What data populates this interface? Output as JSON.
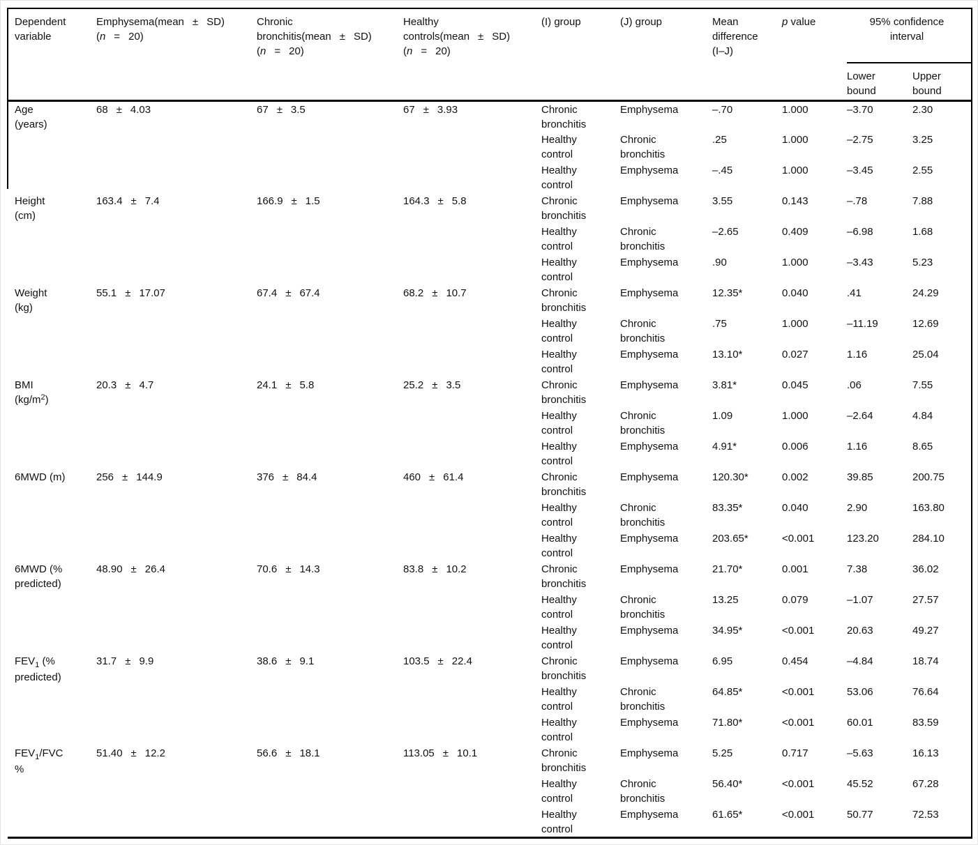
{
  "pm_symbol": "±",
  "header": {
    "dependent_variable": "Dependent\nvariable",
    "emphysema": [
      {
        "t": "Emphysema(mean"
      },
      {
        "t": "±",
        "cls": "gap"
      },
      {
        "t": "SD)"
      },
      {
        "br": true
      },
      {
        "t": "("
      },
      {
        "t": "n",
        "cls": "i"
      },
      {
        "t": "=",
        "cls": "gap"
      },
      {
        "t": "20)"
      }
    ],
    "chronic": [
      {
        "t": "Chronic"
      },
      {
        "br": true
      },
      {
        "t": "bronchitis(mean"
      },
      {
        "t": "±",
        "cls": "gap"
      },
      {
        "t": "SD)"
      },
      {
        "br": true
      },
      {
        "t": "("
      },
      {
        "t": "n",
        "cls": "i"
      },
      {
        "t": "=",
        "cls": "gap"
      },
      {
        "t": "20)"
      }
    ],
    "healthy": [
      {
        "t": "Healthy"
      },
      {
        "br": true
      },
      {
        "t": "controls(mean"
      },
      {
        "t": "±",
        "cls": "gap"
      },
      {
        "t": "SD)"
      },
      {
        "br": true
      },
      {
        "t": "("
      },
      {
        "t": "n",
        "cls": "i"
      },
      {
        "t": "=",
        "cls": "gap"
      },
      {
        "t": "20)"
      }
    ],
    "i_group": "(I) group",
    "j_group": "(J) group",
    "mean_difference": "Mean\ndifference\n(I–J)",
    "p_value": [
      {
        "t": "p",
        "cls": "i"
      },
      {
        "t": " value"
      }
    ],
    "ci": "95% confidence\ninterval",
    "lower": "Lower\nbound",
    "upper": "Upper\nbound"
  },
  "rows": [
    {
      "variable": [
        {
          "t": "Age"
        },
        {
          "br": true
        },
        {
          "t": "(years)"
        }
      ],
      "emphysema": {
        "mean": "68",
        "sd": "4.03"
      },
      "chronic": {
        "mean": "67",
        "sd": "3.5"
      },
      "healthy": {
        "mean": "67",
        "sd": "3.93"
      },
      "comparisons": [
        {
          "i": "Chronic\nbronchitis",
          "j": "Emphysema",
          "md": "–.70",
          "p": "1.000",
          "lower": "–3.70",
          "upper": "2.30"
        },
        {
          "i": "Healthy\ncontrol",
          "j": "Chronic\nbronchitis",
          "md": ".25",
          "p": "1.000",
          "lower": "–2.75",
          "upper": "3.25"
        },
        {
          "i": "Healthy\ncontrol",
          "j": "Emphysema",
          "md": "–.45",
          "p": "1.000",
          "lower": "–3.45",
          "upper": "2.55"
        }
      ]
    },
    {
      "variable": [
        {
          "t": "Height"
        },
        {
          "br": true
        },
        {
          "t": "(cm)"
        }
      ],
      "emphysema": {
        "mean": "163.4",
        "sd": "7.4"
      },
      "chronic": {
        "mean": "166.9",
        "sd": "1.5"
      },
      "healthy": {
        "mean": "164.3",
        "sd": "5.8"
      },
      "comparisons": [
        {
          "i": "Chronic\nbronchitis",
          "j": "Emphysema",
          "md": "3.55",
          "p": "0.143",
          "lower": "–.78",
          "upper": "7.88"
        },
        {
          "i": "Healthy\ncontrol",
          "j": "Chronic\nbronchitis",
          "md": "–2.65",
          "p": "0.409",
          "lower": "–6.98",
          "upper": "1.68"
        },
        {
          "i": "Healthy\ncontrol",
          "j": "Emphysema",
          "md": ".90",
          "p": "1.000",
          "lower": "–3.43",
          "upper": "5.23"
        }
      ]
    },
    {
      "variable": [
        {
          "t": "Weight"
        },
        {
          "br": true
        },
        {
          "t": "(kg)"
        }
      ],
      "emphysema": {
        "mean": "55.1",
        "sd": "17.07"
      },
      "chronic": {
        "mean": "67.4",
        "sd": "67.4"
      },
      "healthy": {
        "mean": "68.2",
        "sd": "10.7"
      },
      "comparisons": [
        {
          "i": "Chronic\nbronchitis",
          "j": "Emphysema",
          "md": "12.35*",
          "p": "0.040",
          "lower": ".41",
          "upper": "24.29"
        },
        {
          "i": "Healthy\ncontrol",
          "j": "Chronic\nbronchitis",
          "md": ".75",
          "p": "1.000",
          "lower": "–11.19",
          "upper": "12.69"
        },
        {
          "i": "Healthy\ncontrol",
          "j": "Emphysema",
          "md": "13.10*",
          "p": "0.027",
          "lower": "1.16",
          "upper": "25.04"
        }
      ]
    },
    {
      "variable": [
        {
          "t": "BMI"
        },
        {
          "br": true
        },
        {
          "t": "(kg/m"
        },
        {
          "t": "2",
          "cls": "sup"
        },
        {
          "t": ")"
        }
      ],
      "emphysema": {
        "mean": "20.3",
        "sd": "4.7"
      },
      "chronic": {
        "mean": "24.1",
        "sd": "5.8"
      },
      "healthy": {
        "mean": "25.2",
        "sd": "3.5"
      },
      "comparisons": [
        {
          "i": "Chronic\nbronchitis",
          "j": "Emphysema",
          "md": "3.81*",
          "p": "0.045",
          "lower": ".06",
          "upper": "7.55"
        },
        {
          "i": "Healthy\ncontrol",
          "j": "Chronic\nbronchitis",
          "md": "1.09",
          "p": "1.000",
          "lower": "–2.64",
          "upper": "4.84"
        },
        {
          "i": "Healthy\ncontrol",
          "j": "Emphysema",
          "md": "4.91*",
          "p": "0.006",
          "lower": "1.16",
          "upper": "8.65"
        }
      ]
    },
    {
      "variable": [
        {
          "t": "6MWD (m)"
        }
      ],
      "emphysema": {
        "mean": "256",
        "sd": "144.9"
      },
      "chronic": {
        "mean": "376",
        "sd": "84.4"
      },
      "healthy": {
        "mean": "460",
        "sd": "61.4"
      },
      "comparisons": [
        {
          "i": "Chronic\nbronchitis",
          "j": "Emphysema",
          "md": "120.30*",
          "p": "0.002",
          "lower": "39.85",
          "upper": "200.75"
        },
        {
          "i": "Healthy\ncontrol",
          "j": "Chronic\nbronchitis",
          "md": "83.35*",
          "p": "0.040",
          "lower": "2.90",
          "upper": "163.80"
        },
        {
          "i": "Healthy\ncontrol",
          "j": "Emphysema",
          "md": "203.65*",
          "p": "<0.001",
          "lower": "123.20",
          "upper": "284.10"
        }
      ]
    },
    {
      "variable": [
        {
          "t": "6MWD (%"
        },
        {
          "br": true
        },
        {
          "t": "predicted)"
        }
      ],
      "emphysema": {
        "mean": "48.90",
        "sd": "26.4"
      },
      "chronic": {
        "mean": "70.6",
        "sd": "14.3"
      },
      "healthy": {
        "mean": "83.8",
        "sd": "10.2"
      },
      "comparisons": [
        {
          "i": "Chronic\nbronchitis",
          "j": "Emphysema",
          "md": "21.70*",
          "p": "0.001",
          "lower": "7.38",
          "upper": "36.02"
        },
        {
          "i": "Healthy\ncontrol",
          "j": "Chronic\nbronchitis",
          "md": "13.25",
          "p": "0.079",
          "lower": "–1.07",
          "upper": "27.57"
        },
        {
          "i": "Healthy\ncontrol",
          "j": "Emphysema",
          "md": "34.95*",
          "p": "<0.001",
          "lower": "20.63",
          "upper": "49.27"
        }
      ]
    },
    {
      "variable": [
        {
          "t": "FEV"
        },
        {
          "t": "1",
          "cls": "sub"
        },
        {
          "t": " (%"
        },
        {
          "br": true
        },
        {
          "t": "predicted)"
        }
      ],
      "emphysema": {
        "mean": "31.7",
        "sd": "9.9"
      },
      "chronic": {
        "mean": "38.6",
        "sd": "9.1"
      },
      "healthy": {
        "mean": "103.5",
        "sd": "22.4"
      },
      "comparisons": [
        {
          "i": "Chronic\nbronchitis",
          "j": "Emphysema",
          "md": "6.95",
          "p": "0.454",
          "lower": "–4.84",
          "upper": "18.74"
        },
        {
          "i": "Healthy\ncontrol",
          "j": "Chronic\nbronchitis",
          "md": "64.85*",
          "p": "<0.001",
          "lower": "53.06",
          "upper": "76.64"
        },
        {
          "i": "Healthy\ncontrol",
          "j": "Emphysema",
          "md": "71.80*",
          "p": "<0.001",
          "lower": "60.01",
          "upper": "83.59"
        }
      ]
    },
    {
      "variable": [
        {
          "t": "FEV"
        },
        {
          "t": "1",
          "cls": "sub"
        },
        {
          "t": "/FVC"
        },
        {
          "br": true
        },
        {
          "t": "%"
        }
      ],
      "emphysema": {
        "mean": "51.40",
        "sd": "12.2"
      },
      "chronic": {
        "mean": "56.6",
        "sd": "18.1"
      },
      "healthy": {
        "mean": "113.05",
        "sd": "10.1"
      },
      "comparisons": [
        {
          "i": "Chronic\nbronchitis",
          "j": "Emphysema",
          "md": "5.25",
          "p": "0.717",
          "lower": "–5.63",
          "upper": "16.13"
        },
        {
          "i": "Healthy\ncontrol",
          "j": "Chronic\nbronchitis",
          "md": "56.40*",
          "p": "<0.001",
          "lower": "45.52",
          "upper": "67.28"
        },
        {
          "i": "Healthy\ncontrol",
          "j": "Emphysema",
          "md": "61.65*",
          "p": "<0.001",
          "lower": "50.77",
          "upper": "72.53"
        }
      ]
    }
  ]
}
